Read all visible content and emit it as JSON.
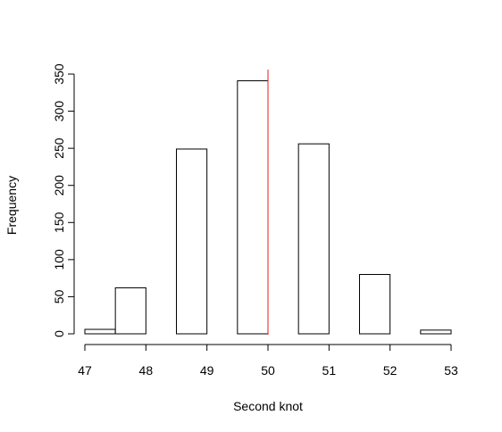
{
  "chart_data": {
    "type": "histogram",
    "title": "",
    "xlabel": "Second knot",
    "ylabel": "Frequency",
    "xlim": [
      47,
      53
    ],
    "ylim": [
      0,
      350
    ],
    "x_ticks": [
      47,
      48,
      49,
      50,
      51,
      52,
      53
    ],
    "y_ticks": [
      0,
      50,
      100,
      150,
      200,
      250,
      300,
      350
    ],
    "bins": [
      {
        "x0": 47.0,
        "x1": 47.5,
        "count": 6
      },
      {
        "x0": 47.5,
        "x1": 48.0,
        "count": 62
      },
      {
        "x0": 48.0,
        "x1": 48.5,
        "count": 0
      },
      {
        "x0": 48.5,
        "x1": 49.0,
        "count": 249
      },
      {
        "x0": 49.0,
        "x1": 49.5,
        "count": 0
      },
      {
        "x0": 49.5,
        "x1": 50.0,
        "count": 341
      },
      {
        "x0": 50.0,
        "x1": 50.5,
        "count": 0
      },
      {
        "x0": 50.5,
        "x1": 51.0,
        "count": 256
      },
      {
        "x0": 51.0,
        "x1": 51.5,
        "count": 0
      },
      {
        "x0": 51.5,
        "x1": 52.0,
        "count": 80
      },
      {
        "x0": 52.0,
        "x1": 52.5,
        "count": 0
      },
      {
        "x0": 52.5,
        "x1": 53.0,
        "count": 5
      }
    ],
    "reference_line": {
      "x": 50,
      "color": "#e8191c"
    },
    "bar_fill": "#ffffff",
    "bar_stroke": "#000000",
    "grid": false,
    "legend": "none"
  }
}
